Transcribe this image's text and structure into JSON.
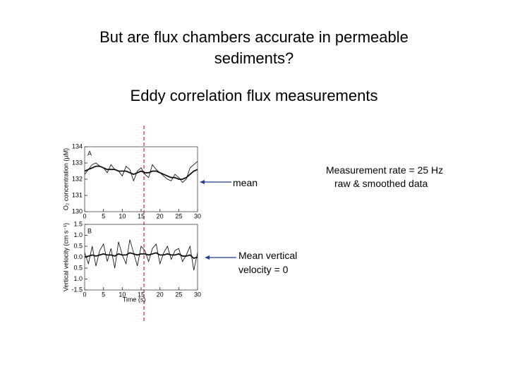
{
  "title": "But are flux chambers accurate in permeable sediments?",
  "subtitle": "Eddy correlation flux measurements",
  "annotations": {
    "mean": "mean",
    "mean_velocity": "Mean vertical velocity = 0",
    "rate": "Measurement rate = 25 Hz",
    "smoothing": "raw & smoothed data"
  },
  "chart_data": [
    {
      "type": "line",
      "panel": "A",
      "y_label": "O₂ concentration (µM)",
      "x": [
        0,
        1,
        2,
        3,
        4,
        5,
        6,
        7,
        8,
        9,
        10,
        11,
        12,
        13,
        14,
        15,
        16,
        17,
        18,
        19,
        20,
        21,
        22,
        23,
        24,
        25,
        26,
        27,
        28,
        29,
        30
      ],
      "series": [
        {
          "color": "#000000",
          "values": [
            132.3,
            132.6,
            132.9,
            133.0,
            132.8,
            132.7,
            132.4,
            132.9,
            132.6,
            132.5,
            132.2,
            132.8,
            132.6,
            131.9,
            132.5,
            132.7,
            132.3,
            132.1,
            132.9,
            132.6,
            132.4,
            132.2,
            132.0,
            131.9,
            132.3,
            132.1,
            131.8,
            132.0,
            132.7,
            132.9,
            133.1
          ]
        },
        {
          "color": "#111111",
          "values": [
            132.5,
            132.6,
            132.7,
            132.8,
            132.8,
            132.7,
            132.6,
            132.6,
            132.6,
            132.5,
            132.5,
            132.5,
            132.4,
            132.3,
            132.4,
            132.5,
            132.4,
            132.4,
            132.5,
            132.5,
            132.4,
            132.3,
            132.2,
            132.1,
            132.1,
            132.0,
            132.0,
            132.1,
            132.3,
            132.5,
            132.6
          ]
        }
      ],
      "xlim": [
        0,
        30
      ],
      "xticks": [
        0,
        5,
        10,
        15,
        20,
        25,
        30
      ],
      "ylim": [
        130,
        134
      ],
      "yticks": [
        130,
        131,
        132,
        133,
        134
      ]
    },
    {
      "type": "line",
      "panel": "B",
      "y_label": "Vertical velocity (cm s⁻¹)",
      "x_label": "Time (s)",
      "x": [
        0,
        1,
        2,
        3,
        4,
        5,
        6,
        7,
        8,
        9,
        10,
        11,
        12,
        13,
        14,
        15,
        16,
        17,
        18,
        19,
        20,
        21,
        22,
        23,
        24,
        25,
        26,
        27,
        28,
        29,
        30
      ],
      "series": [
        {
          "color": "#000000",
          "values": [
            0.2,
            -0.3,
            0.5,
            -0.4,
            0.3,
            0.6,
            -0.2,
            0.4,
            -0.5,
            0.7,
            0.1,
            -0.3,
            0.8,
            0.2,
            -0.4,
            0.5,
            0.3,
            -0.2,
            0.4,
            0.6,
            -0.3,
            0.2,
            0.5,
            -0.1,
            0.3,
            0.4,
            -0.2,
            0.1,
            0.5,
            -0.6,
            0.2
          ]
        },
        {
          "color": "#111111",
          "values": [
            0.0,
            0.05,
            0.1,
            0.05,
            0.1,
            0.15,
            0.1,
            0.1,
            0.05,
            0.15,
            0.1,
            0.1,
            0.2,
            0.15,
            0.1,
            0.15,
            0.15,
            0.1,
            0.15,
            0.2,
            0.1,
            0.1,
            0.15,
            0.1,
            0.1,
            0.15,
            0.05,
            0.05,
            0.1,
            -0.05,
            0.0
          ]
        }
      ],
      "xlim": [
        0,
        30
      ],
      "xticks": [
        0,
        5,
        10,
        15,
        20,
        25,
        30
      ],
      "ylim": [
        -1.5,
        1.5
      ],
      "yticks": [
        -1.5,
        {
          "value": -1,
          "label": "1.0"
        },
        {
          "value": -0.5,
          "label": "0.5"
        },
        {
          "value": 0,
          "label": "0.0"
        },
        0.5,
        {
          "value": 1,
          "label": "1.0"
        },
        1.5
      ]
    }
  ]
}
